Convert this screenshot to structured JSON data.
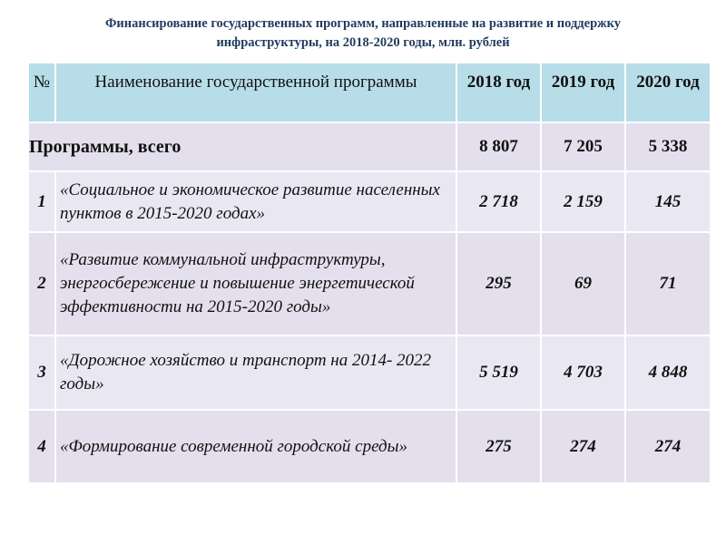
{
  "title_line1": "Финансирование государственных программ, направленные на развитие и поддержку",
  "title_line2": "инфраструктуры,  на 2018-2020 годы, млн. рублей",
  "table": {
    "headers": [
      "№",
      "Наименование государственной программы",
      "2018 год",
      "2019 год",
      "2020 год"
    ],
    "total": {
      "label": "Программы, всего",
      "values": [
        "8 807",
        "7 205",
        "5 338"
      ]
    },
    "rows": [
      {
        "num": "1",
        "name": " «Социальное и экономическое  развитие населенных пунктов в 2015-2020 годах»",
        "values": [
          "2 718",
          "2 159",
          "145"
        ]
      },
      {
        "num": "2",
        "name": "«Развитие коммунальной инфраструктуры, энергосбережение и повышение энергетической эффективности на 2015-2020 годы»",
        "values": [
          "295",
          "69",
          "71"
        ]
      },
      {
        "num": "3",
        "name": "«Дорожное хозяйство и транспорт на 2014- 2022 годы»",
        "values": [
          "5 519",
          "4 703",
          "4 848"
        ]
      },
      {
        "num": "4",
        "name": "«Формирование современной городской среды»",
        "values": [
          "275",
          "274",
          "274"
        ]
      }
    ]
  }
}
